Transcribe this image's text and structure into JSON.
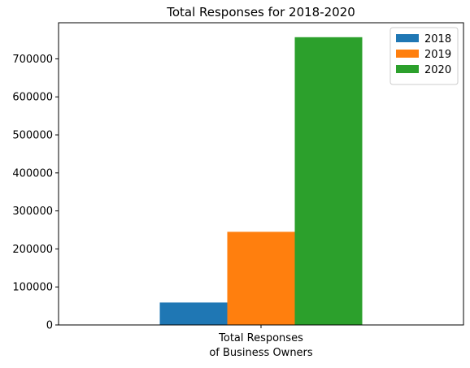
{
  "chart_data": {
    "type": "bar",
    "title": "Total Responses for 2018-2020",
    "categories": [
      "Total Responses\nof Business Owners"
    ],
    "category_lines": [
      "Total Responses",
      "of Business Owners"
    ],
    "series": [
      {
        "name": "2018",
        "values": [
          59000
        ],
        "color": "#1f77b4"
      },
      {
        "name": "2019",
        "values": [
          245000
        ],
        "color": "#ff7f0e"
      },
      {
        "name": "2020",
        "values": [
          757000
        ],
        "color": "#2ca02c"
      }
    ],
    "yticks": [
      0,
      100000,
      200000,
      300000,
      400000,
      500000,
      600000,
      700000
    ],
    "ytick_labels": [
      "0",
      "100000",
      "200000",
      "300000",
      "400000",
      "500000",
      "600000",
      "700000"
    ],
    "ylim": [
      0,
      795000
    ],
    "xlabel": "",
    "ylabel": "",
    "grid": false,
    "legend_position": "top-right"
  }
}
